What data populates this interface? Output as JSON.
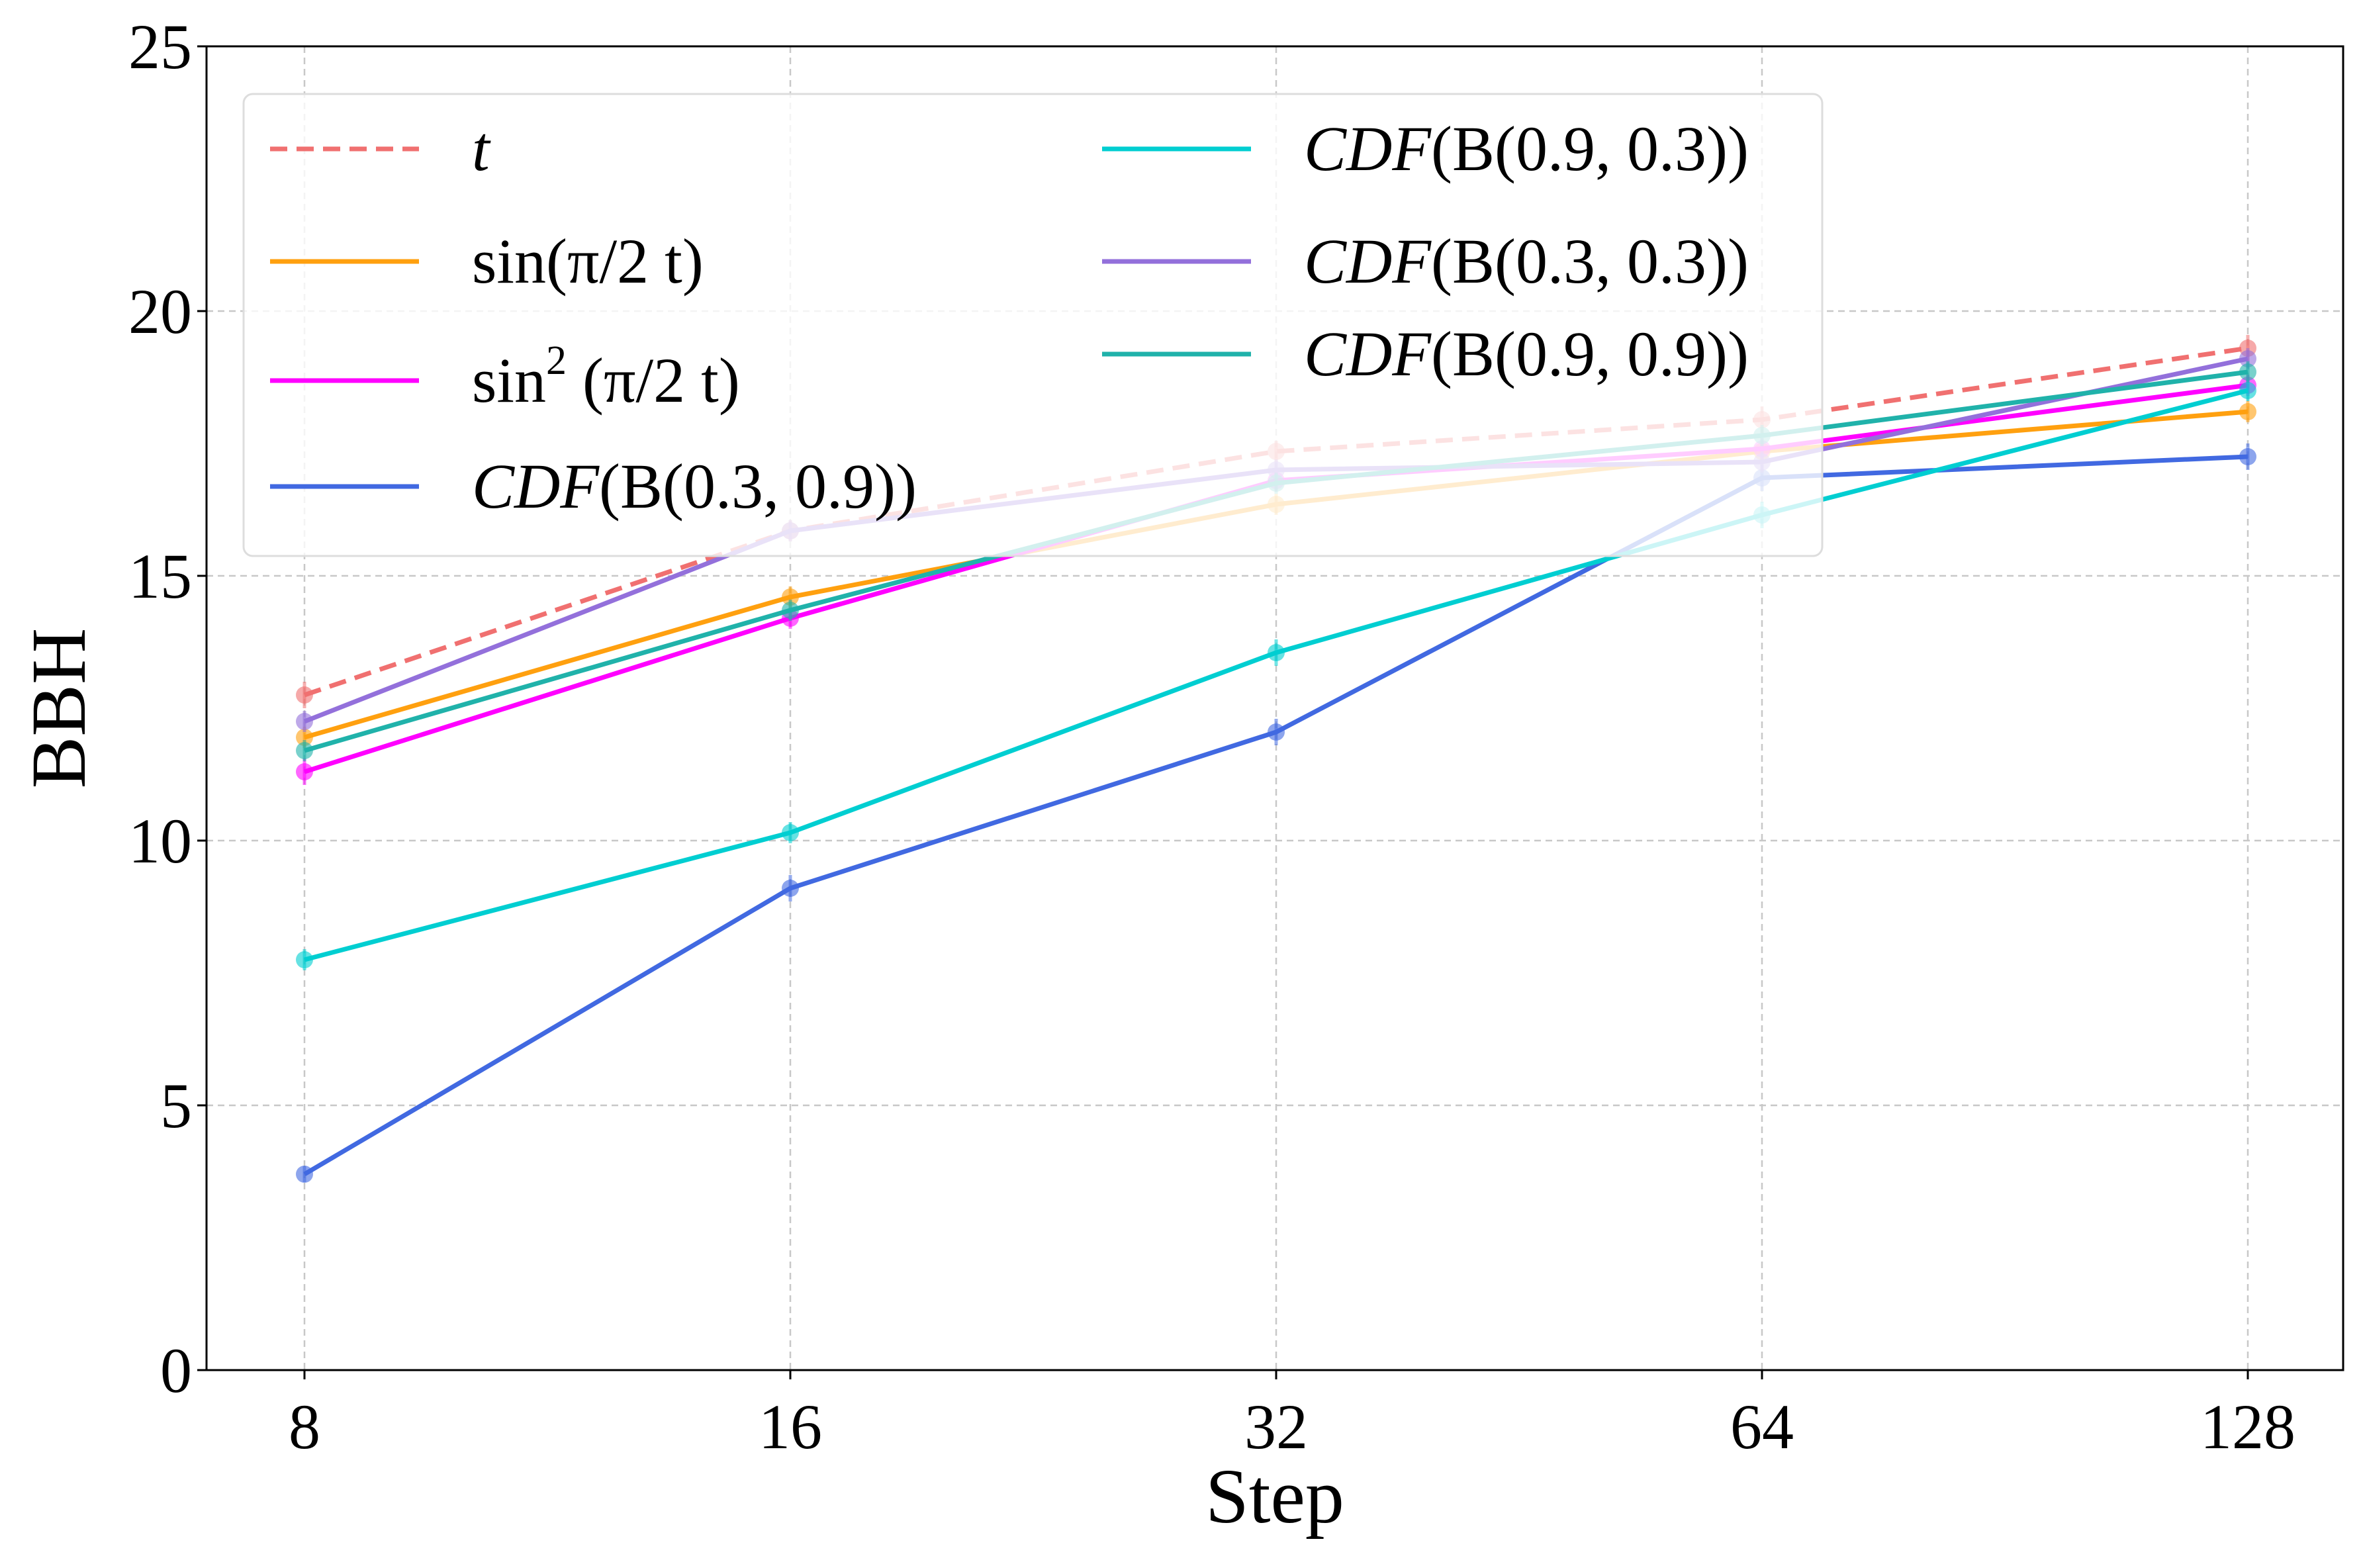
{
  "chart_data": {
    "type": "line",
    "title": "",
    "xlabel": "Step",
    "ylabel": "BBH",
    "x": [
      8,
      16,
      32,
      64,
      128
    ],
    "x_tick_labels": [
      "8",
      "16",
      "32",
      "64",
      "128"
    ],
    "xscale": "log2",
    "ylim": [
      0,
      25
    ],
    "y_ticks": [
      0,
      5,
      10,
      15,
      20,
      25
    ],
    "y_tick_labels": [
      "0",
      "5",
      "10",
      "15",
      "20",
      "25"
    ],
    "grid": true,
    "legend_position": "top-left",
    "series": [
      {
        "name": "t",
        "color": "#f07070",
        "dash": true,
        "values": [
          12.75,
          15.85,
          17.35,
          17.95,
          19.3
        ],
        "errors": [
          0.25,
          0.2,
          0.2,
          0.25,
          0.25
        ]
      },
      {
        "name": "sin(π/2 t)",
        "color": "#ffa00f",
        "dash": false,
        "values": [
          11.95,
          14.6,
          16.35,
          17.35,
          18.1
        ],
        "errors": [
          0.2,
          0.2,
          0.2,
          0.2,
          0.2
        ]
      },
      {
        "name": "sin²(π/2 t)",
        "color": "#ff00ff",
        "dash": false,
        "values": [
          11.3,
          14.2,
          16.8,
          17.4,
          18.6
        ],
        "errors": [
          0.25,
          0.2,
          0.2,
          0.2,
          0.2
        ]
      },
      {
        "name": "CDF(B(0.3, 0.9))",
        "color": "#4169e1",
        "dash": false,
        "values": [
          3.7,
          9.1,
          12.05,
          16.85,
          17.25
        ],
        "errors": [
          0.15,
          0.25,
          0.25,
          0.25,
          0.25
        ]
      },
      {
        "name": "CDF(B(0.9, 0.3))",
        "color": "#00ced1",
        "dash": false,
        "values": [
          7.75,
          10.15,
          13.55,
          16.15,
          18.5
        ],
        "errors": [
          0.2,
          0.2,
          0.25,
          0.25,
          0.2
        ]
      },
      {
        "name": "CDF(B(0.3, 0.3))",
        "color": "#9370db",
        "dash": false,
        "values": [
          12.25,
          15.85,
          17.0,
          17.15,
          19.1
        ],
        "errors": [
          0.2,
          0.2,
          0.2,
          0.2,
          0.2
        ]
      },
      {
        "name": "CDF(B(0.9, 0.9))",
        "color": "#20b2aa",
        "dash": false,
        "values": [
          11.7,
          14.35,
          16.75,
          17.65,
          18.85
        ],
        "errors": [
          0.2,
          0.2,
          0.2,
          0.2,
          0.2
        ]
      }
    ]
  },
  "legend": {
    "items": [
      {
        "main": "t",
        "italic": true
      },
      {
        "main": "sin(",
        "rest": "π/2 t)",
        "italic": false
      },
      {
        "main": "sin",
        "sup": "2",
        "rest": " (π/2 t)",
        "italic": false
      },
      {
        "main": "CDF",
        "rest": "(B(0.3, 0.9))",
        "italic": true
      },
      {
        "main": "CDF",
        "rest": "(B(0.9, 0.3))",
        "italic": true
      },
      {
        "main": "CDF",
        "rest": "(B(0.3, 0.3))",
        "italic": true
      },
      {
        "main": "CDF",
        "rest": "(B(0.9, 0.9))",
        "italic": true
      }
    ]
  }
}
